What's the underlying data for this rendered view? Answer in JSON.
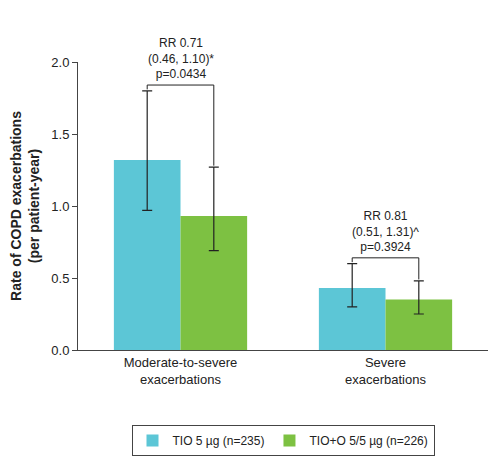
{
  "chart_data": {
    "type": "bar",
    "y_label": "Rate of COPD exacerbations (per patient-year)",
    "categories": [
      "Moderate-to-severe exacerbations",
      "Severe exacerbations"
    ],
    "series": [
      {
        "name": "TIO 5 µg (n=235)",
        "color": "#5cc6d6",
        "values": [
          1.32,
          0.43
        ],
        "ci_low": [
          0.97,
          0.3
        ],
        "ci_high": [
          1.8,
          0.6
        ]
      },
      {
        "name": "TIO+O 5/5 µg (n=226)",
        "color": "#7dc142",
        "values": [
          0.93,
          0.35
        ],
        "ci_low": [
          0.69,
          0.25
        ],
        "ci_high": [
          1.27,
          0.48
        ]
      }
    ],
    "ylim": [
      0,
      2.0
    ],
    "yticks": [
      {
        "value": 0,
        "label": "0.0"
      },
      0.5,
      {
        "value": 1.0,
        "label": "1.0"
      },
      1.5,
      {
        "value": 2.0,
        "label": "2.0"
      }
    ],
    "grid": false,
    "legend": "bottom",
    "annotations": [
      {
        "category": "Moderate-to-severe exacerbations",
        "lines": [
          "RR 0.71",
          "(0.46, 1.10)*",
          "p=0.0434"
        ]
      },
      {
        "category": "Severe exacerbations",
        "lines": [
          "RR 0.81",
          "(0.51, 1.31)^",
          "p=0.3924"
        ]
      }
    ]
  }
}
